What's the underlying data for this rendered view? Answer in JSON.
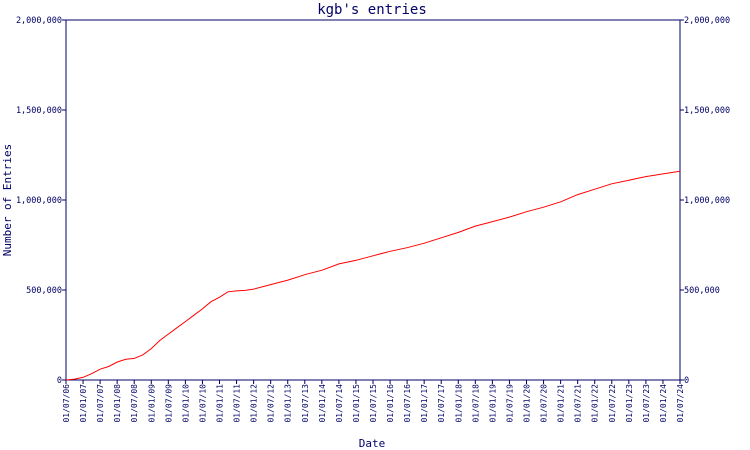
{
  "chart_data": {
    "type": "line",
    "title": "kgb's entries",
    "xlabel": "Date",
    "ylabel": "Number of Entries",
    "ylim": [
      0,
      2000000
    ],
    "yticks": [
      0,
      500000,
      1000000,
      1500000,
      2000000
    ],
    "ytick_labels": [
      "0",
      "500,000",
      "1,000,000",
      "1,500,000",
      "2,000,000"
    ],
    "xlim": [
      "2006-07-01",
      "2024-07-01"
    ],
    "xtick_labels": [
      "01/07/06",
      "01/01/07",
      "01/07/07",
      "01/01/08",
      "01/07/08",
      "01/01/09",
      "01/07/09",
      "01/01/10",
      "01/07/10",
      "01/01/11",
      "01/07/11",
      "01/01/12",
      "01/07/12",
      "01/01/13",
      "01/07/13",
      "01/01/14",
      "01/07/14",
      "01/01/15",
      "01/07/15",
      "01/01/16",
      "01/07/16",
      "01/01/17",
      "01/07/17",
      "01/01/18",
      "01/07/18",
      "01/01/19",
      "01/07/19",
      "01/01/20",
      "01/07/20",
      "01/01/21",
      "01/07/21",
      "01/01/22",
      "01/07/22",
      "01/01/23",
      "01/07/23",
      "01/01/24",
      "01/07/24"
    ],
    "grid": false,
    "colors": {
      "line": "#ff0000",
      "axes": "#000066",
      "text": "#000066",
      "background": "#ffffff"
    },
    "series": [
      {
        "x": [
          "2006-07-01",
          "2006-10-01",
          "2007-01-01",
          "2007-04-01",
          "2007-07-01",
          "2007-10-01",
          "2008-01-01",
          "2008-04-01",
          "2008-07-01",
          "2008-10-01",
          "2009-01-01",
          "2009-04-01",
          "2009-07-01",
          "2009-10-01",
          "2010-01-01",
          "2010-04-01",
          "2010-07-01",
          "2010-10-01",
          "2011-01-01",
          "2011-04-01",
          "2011-07-01",
          "2011-10-01",
          "2012-01-01",
          "2012-07-01",
          "2013-01-01",
          "2013-07-01",
          "2014-01-01",
          "2014-07-01",
          "2015-01-01",
          "2015-07-01",
          "2016-01-01",
          "2016-07-01",
          "2017-01-01",
          "2017-07-01",
          "2018-01-01",
          "2018-07-01",
          "2019-01-01",
          "2019-07-01",
          "2020-01-01",
          "2020-07-01",
          "2021-01-01",
          "2021-07-01",
          "2022-01-01",
          "2022-07-01",
          "2023-01-01",
          "2023-07-01",
          "2024-01-01",
          "2024-07-01"
        ],
        "values": [
          0,
          5000,
          15000,
          35000,
          60000,
          75000,
          100000,
          115000,
          120000,
          140000,
          175000,
          220000,
          255000,
          290000,
          325000,
          360000,
          395000,
          435000,
          460000,
          490000,
          495000,
          498000,
          505000,
          530000,
          555000,
          585000,
          610000,
          645000,
          665000,
          690000,
          715000,
          735000,
          760000,
          790000,
          820000,
          855000,
          880000,
          905000,
          935000,
          960000,
          990000,
          1030000,
          1060000,
          1090000,
          1110000,
          1130000,
          1145000,
          1160000
        ]
      }
    ]
  }
}
